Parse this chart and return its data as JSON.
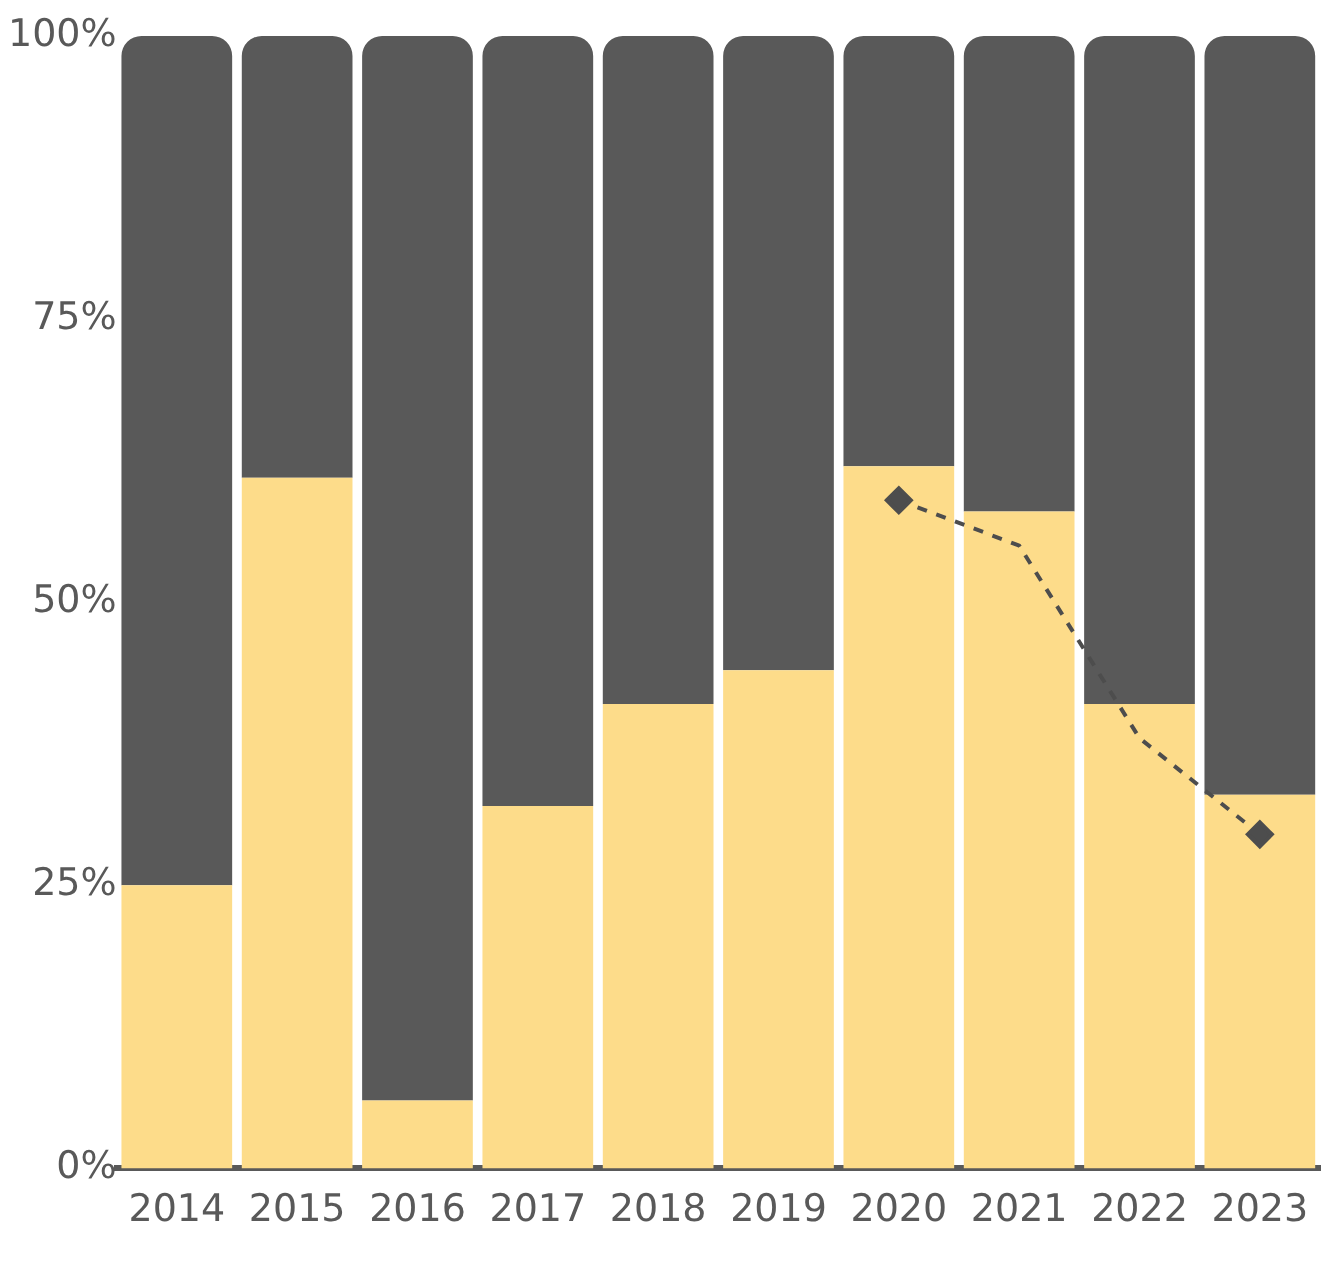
{
  "chart_data": {
    "type": "bar",
    "stacked": true,
    "categories": [
      "2014",
      "2015",
      "2016",
      "2017",
      "2018",
      "2019",
      "2020",
      "2021",
      "2022",
      "2023"
    ],
    "series": [
      {
        "color": "#fddc8a",
        "values": [
          25,
          61,
          6,
          32,
          41,
          44,
          62,
          58,
          41,
          33
        ]
      },
      {
        "color": "#595959",
        "values": [
          75,
          39,
          94,
          68,
          59,
          56,
          38,
          42,
          59,
          67
        ]
      },
      {
        "type": "line",
        "color": "#4d4d4d",
        "line_style": "dashed",
        "marker": "diamond",
        "values": [
          null,
          null,
          null,
          null,
          null,
          null,
          59,
          55,
          38,
          29.5
        ]
      }
    ],
    "ylim": [
      0,
      100
    ],
    "yticks": [
      {
        "value": 0,
        "label": "0%"
      },
      {
        "value": 25,
        "label": "25%"
      },
      {
        "value": 50,
        "label": "50%"
      },
      {
        "value": 75,
        "label": "75%"
      },
      {
        "value": 100,
        "label": "100%"
      }
    ],
    "grid": false,
    "legend": false
  }
}
